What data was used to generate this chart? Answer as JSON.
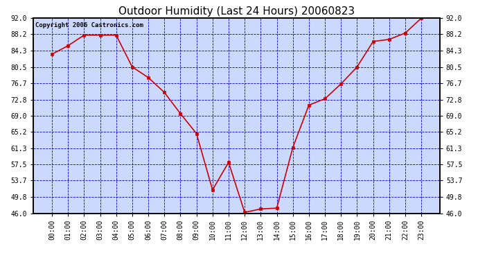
{
  "title": "Outdoor Humidity (Last 24 Hours) 20060823",
  "copyright_text": "Copyright 2006 Castronics.com",
  "x_labels": [
    "00:00",
    "01:00",
    "02:00",
    "03:00",
    "04:00",
    "05:00",
    "06:00",
    "07:00",
    "08:00",
    "09:00",
    "10:00",
    "11:00",
    "12:00",
    "13:00",
    "14:00",
    "15:00",
    "16:00",
    "17:00",
    "18:00",
    "19:00",
    "20:00",
    "21:00",
    "22:00",
    "23:00"
  ],
  "y_values": [
    83.5,
    85.5,
    88.0,
    88.0,
    88.0,
    80.5,
    78.0,
    74.5,
    69.5,
    64.8,
    51.5,
    58.0,
    46.2,
    47.0,
    47.2,
    61.5,
    71.5,
    73.0,
    76.5,
    80.5,
    86.5,
    87.0,
    88.5,
    92.0
  ],
  "y_ticks": [
    46.0,
    49.8,
    53.7,
    57.5,
    61.3,
    65.2,
    69.0,
    72.8,
    76.7,
    80.5,
    84.3,
    88.2,
    92.0
  ],
  "ylim": [
    46.0,
    92.0
  ],
  "line_color": "#cc0000",
  "marker_color": "#cc0000",
  "bg_color": "#ccd9ff",
  "grid_color": "#0000cc",
  "title_fontsize": 11,
  "axis_fontsize": 7,
  "copyright_fontsize": 6.5,
  "figure_width": 6.9,
  "figure_height": 3.75,
  "dpi": 100
}
